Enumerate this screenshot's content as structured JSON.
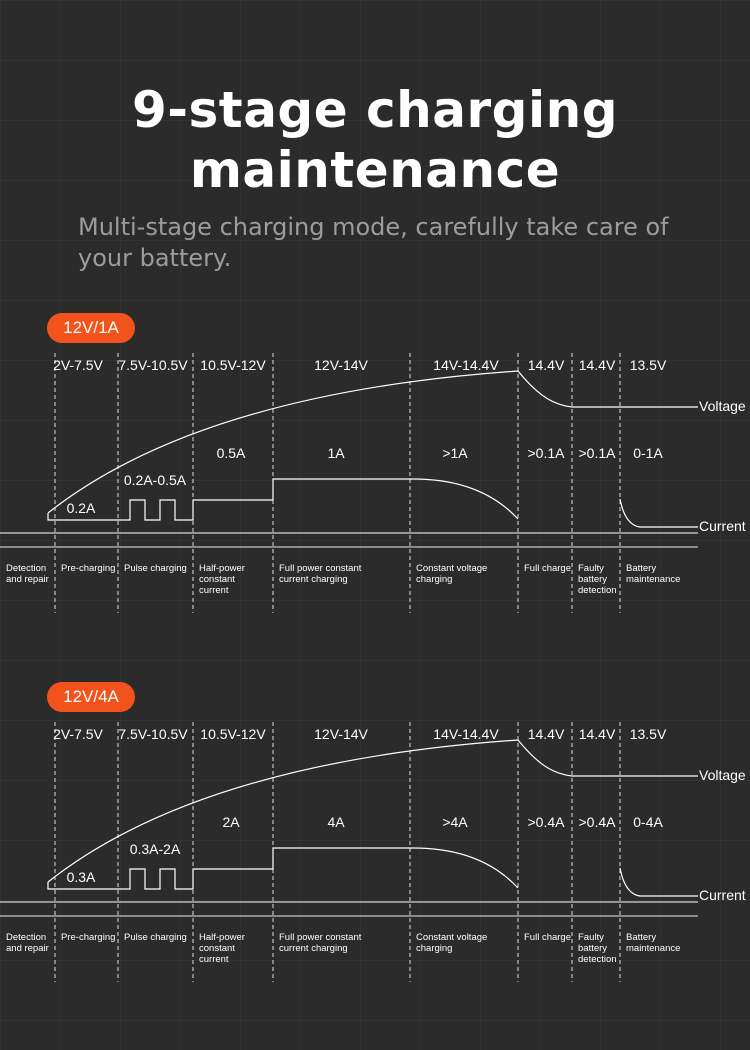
{
  "header": {
    "title_line1": "9-stage charging",
    "title_line2": "maintenance",
    "subtitle": "Multi-stage charging mode, carefully take care of your battery."
  },
  "colors": {
    "accent": "#f2531c",
    "background": "#2b2b2b",
    "line": "#ffffff"
  },
  "curve_labels": {
    "voltage": "Voltage",
    "current": "Current"
  },
  "stages": [
    [
      "Detection",
      "and repair"
    ],
    [
      "Pre-charging"
    ],
    [
      "Pulse charging"
    ],
    [
      "Half-power",
      "constant",
      "current"
    ],
    [
      "Full power constant",
      "current charging"
    ],
    [
      "Constant voltage",
      "charging"
    ],
    [
      "Full charge"
    ],
    [
      "Faulty",
      "battery",
      "detection"
    ],
    [
      "Battery",
      "maintenance"
    ]
  ],
  "voltage_ranges": [
    "2V-7.5V",
    "7.5V-10.5V",
    "10.5V-12V",
    "12V-14V",
    "14V-14.4V",
    "14.4V",
    "14.4V",
    "13.5V"
  ],
  "panels": [
    {
      "badge": "12V/1A",
      "currents": [
        "0.2A",
        "0.2A-0.5A",
        "0.5A",
        "1A",
        ">1A",
        ">0.1A",
        ">0.1A",
        "0-1A"
      ]
    },
    {
      "badge": "12V/4A",
      "currents": [
        "0.3A",
        "0.3A-2A",
        "2A",
        "4A",
        ">4A",
        ">0.4A",
        ">0.4A",
        "0-4A"
      ]
    }
  ]
}
